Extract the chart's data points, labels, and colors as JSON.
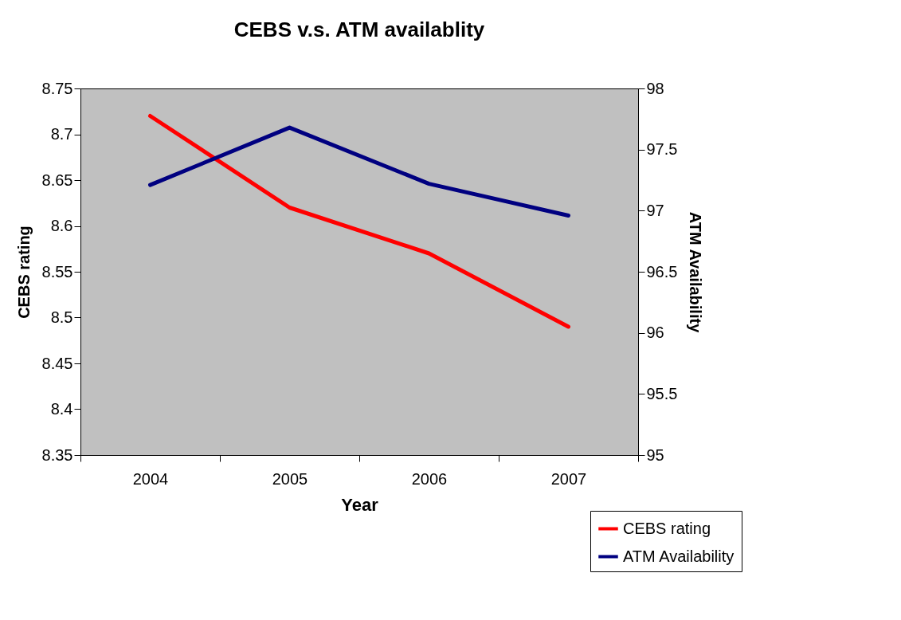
{
  "chart_data": {
    "type": "line",
    "title": "CEBS v.s. ATM availablity",
    "xlabel": "Year",
    "ylabel": "CEBS rating",
    "y2label": "ATM Availability",
    "categories": [
      "2004",
      "2005",
      "2006",
      "2007"
    ],
    "series": [
      {
        "name": "CEBS rating",
        "color": "#ff0000",
        "values": [
          8.72,
          8.62,
          8.57,
          8.49
        ]
      },
      {
        "name": "ATM Availability",
        "color": "#000080",
        "axis": "y2",
        "values": [
          97.21,
          97.68,
          97.22,
          96.96
        ]
      }
    ],
    "ylim": [
      8.35,
      8.75
    ],
    "yticks": [
      8.35,
      8.4,
      8.45,
      8.5,
      8.55,
      8.6,
      8.65,
      8.7,
      8.75
    ],
    "y2lim": [
      95,
      98
    ],
    "y2ticks": [
      95,
      95.5,
      96,
      96.5,
      97,
      97.5,
      98
    ],
    "grid": false,
    "legend": "bottom right",
    "marker": "none",
    "line_style": "solid"
  }
}
